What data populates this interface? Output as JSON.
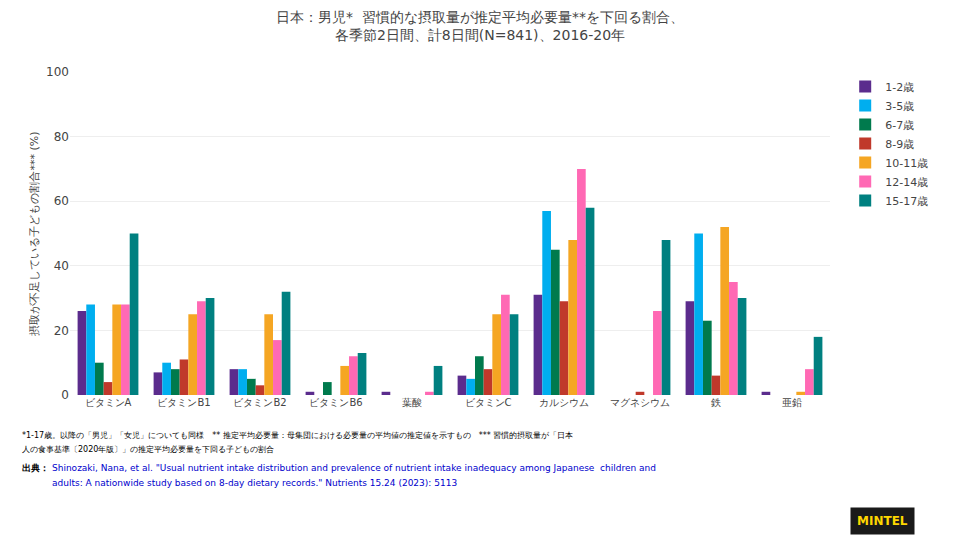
{
  "chart_data": {
    "type": "bar",
    "title": "日本：男児*  習慣的な摂取量が推定平均必要量**を下回る割合、",
    "subtitle": "各季節2日間、計8日間(N=841)、2016-20年",
    "y_label": "摂取が不足している子どもの割合*** (%)",
    "categories": [
      "ビタミンA",
      "ビタミンB1",
      "ビタミンB2",
      "ビタミンB6",
      "葉酸",
      "ビタミンC",
      "カルシウム",
      "マグネシウム",
      "鉄",
      "亜鉛"
    ],
    "series": [
      {
        "name": "1-2歳",
        "color": "#5B2C8D",
        "values": [
          26,
          7,
          8,
          1,
          1,
          6,
          31,
          0,
          29,
          1
        ]
      },
      {
        "name": "3-5歳",
        "color": "#00AEEF",
        "values": [
          28,
          10,
          8,
          0,
          0,
          5,
          57,
          0,
          50,
          0
        ]
      },
      {
        "name": "6-7歳",
        "color": "#007A4D",
        "values": [
          10,
          8,
          5,
          4,
          0,
          12,
          45,
          0,
          23,
          0
        ]
      },
      {
        "name": "8-9歳",
        "color": "#C0392B",
        "values": [
          4,
          11,
          3,
          0,
          0,
          8,
          29,
          1,
          6,
          0
        ]
      },
      {
        "name": "10-11歳",
        "color": "#F5A623",
        "values": [
          28,
          25,
          25,
          9,
          0,
          25,
          48,
          0,
          52,
          1
        ]
      },
      {
        "name": "12-14歳",
        "color": "#FF69B4",
        "values": [
          28,
          29,
          17,
          12,
          1,
          31,
          70,
          26,
          35,
          8
        ]
      },
      {
        "name": "15-17歳",
        "color": "#008080",
        "values": [
          50,
          30,
          32,
          13,
          9,
          25,
          58,
          48,
          30,
          18
        ]
      }
    ],
    "ylim": [
      0,
      100
    ],
    "yticks": [
      0,
      20,
      40,
      60,
      80,
      100
    ],
    "grid": true,
    "legend": "right",
    "annotations": [
      "*1-17歳。以降の「男児」「女児」についても同様　** 推定平均必要量：母集団における必要量の平均値の推定値を示すもの　*** 習慣的摂取量が「日本",
      "人の食事基準〔2020年版〕」の推定平均必要量を下回る子どもの割合",
      "出典：",
      "Shinozaki, Nana, et al. \"Usual nutrient intake distribution and prevalence of nutrient intake inadequacy among Japanese  children and",
      "adults: A nationwide study based on 8-day dietary records.\" Nutrients 15.24 (2023): 5113",
      "MINTEL"
    ]
  }
}
